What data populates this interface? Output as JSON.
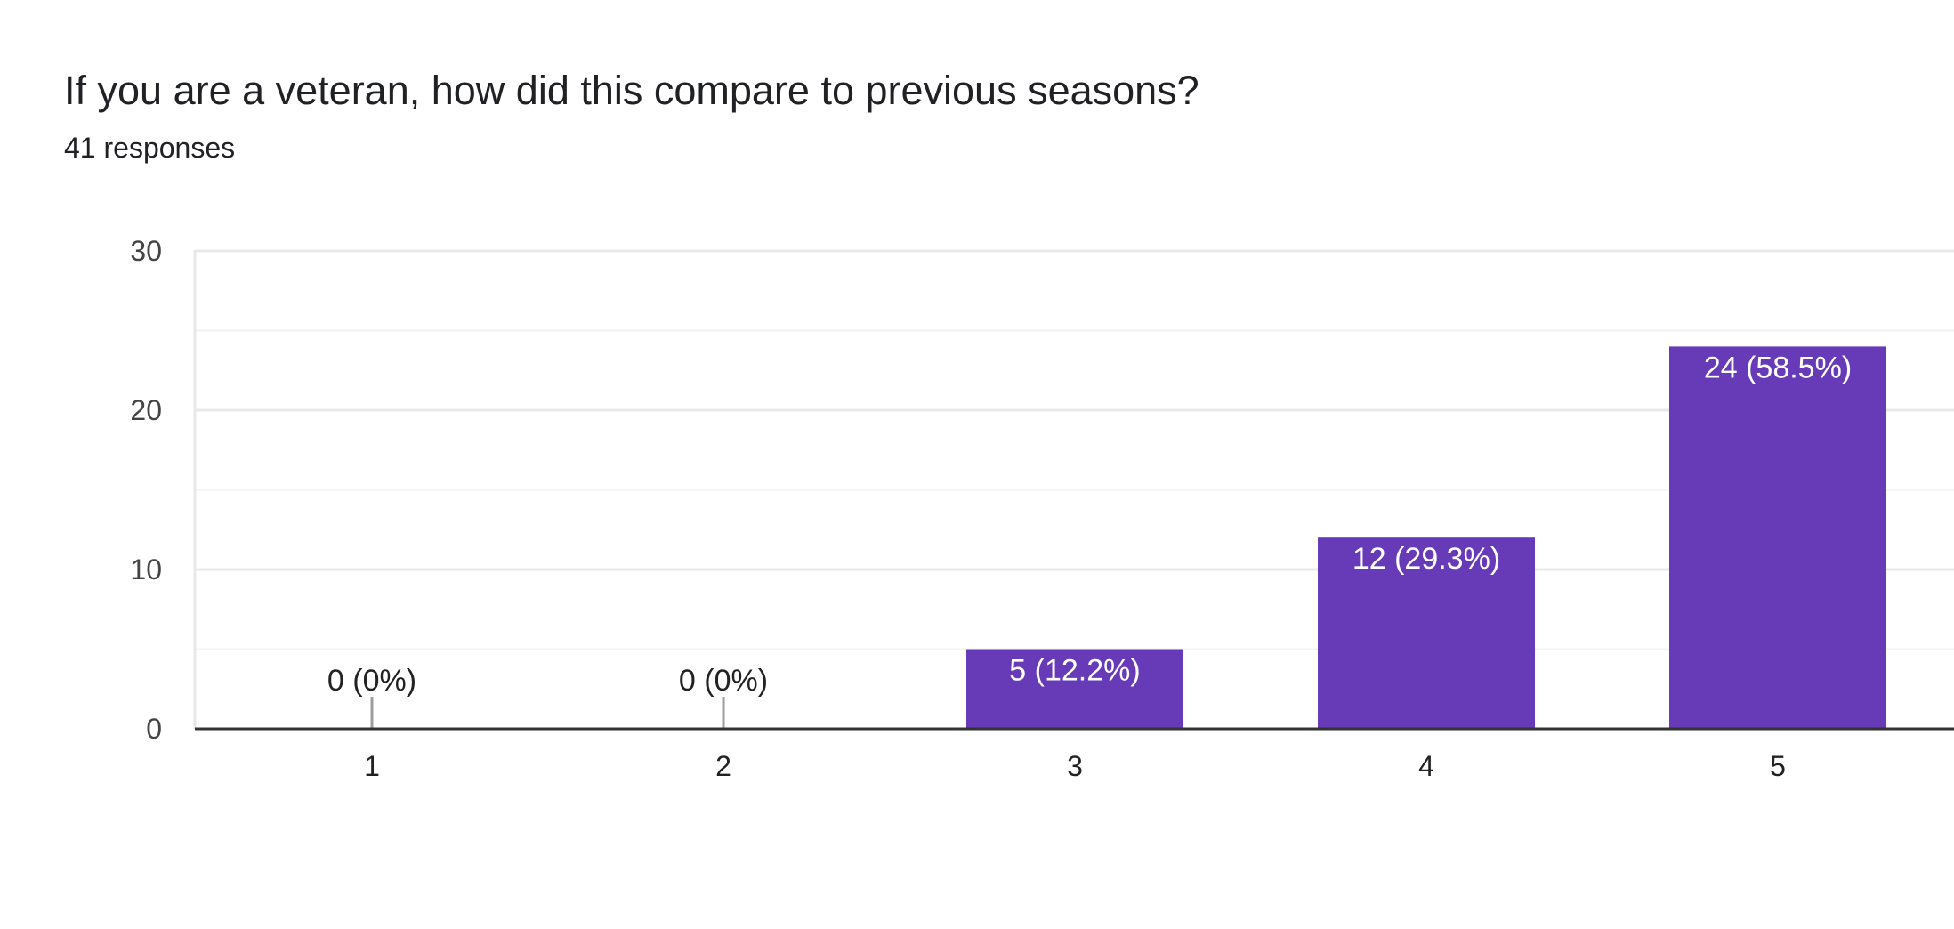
{
  "question": {
    "title": "If you are a veteran, how did this compare to previous seasons?",
    "responses": "41 responses"
  },
  "colors": {
    "bar": "#673ab7",
    "grid_major": "#e8e8e8",
    "grid_minor": "#f3f3f3",
    "axis": "#333333",
    "zero_stub": "#9e9e9e"
  },
  "chart_data": {
    "type": "bar",
    "title": "",
    "xlabel": "",
    "ylabel": "",
    "categories": [
      "1",
      "2",
      "3",
      "4",
      "5"
    ],
    "values": [
      0,
      0,
      5,
      12,
      24
    ],
    "data_labels": [
      "0 (0%)",
      "0 (0%)",
      "5 (12.2%)",
      "12 (29.3%)",
      "24 (58.5%)"
    ],
    "ylim": [
      0,
      30
    ],
    "yticks": [
      0,
      10,
      20,
      30
    ],
    "grid": true,
    "legend": "none"
  }
}
